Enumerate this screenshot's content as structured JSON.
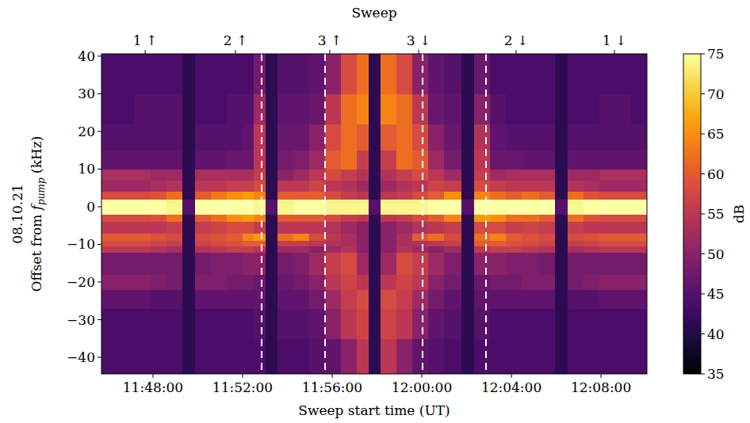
{
  "chart_data": {
    "type": "heatmap",
    "color": "inferno",
    "xlabel": "Sweep start time (UT)",
    "ylabel_date": "08.10.21",
    "ylabel": [
      "Offset from ",
      "f",
      "pump",
      " (kHz)"
    ],
    "top_title": "Sweep",
    "top_ticks": [
      {
        "value": 707.65,
        "label": "1 ↑"
      },
      {
        "value": 711.68,
        "label": "2 ↑"
      },
      {
        "value": 715.89,
        "label": "3 ↑"
      },
      {
        "value": 719.86,
        "label": "3 ↓"
      },
      {
        "value": 724.21,
        "label": "2 ↓"
      },
      {
        "value": 728.6,
        "label": "1 ↓"
      }
    ],
    "xlim": [
      705.7,
      730.05
    ],
    "xticks": [
      {
        "value": 708,
        "label": "11:48:00"
      },
      {
        "value": 712,
        "label": "11:52:00"
      },
      {
        "value": 716,
        "label": "11:56:00"
      },
      {
        "value": 720,
        "label": "12:00:00"
      },
      {
        "value": 724,
        "label": "12:04:00"
      },
      {
        "value": 728,
        "label": "12:08:00"
      }
    ],
    "ylim": [
      -44.4,
      40.6
    ],
    "yticks": [
      {
        "value": -40,
        "label": "−40"
      },
      {
        "value": -30,
        "label": "−30"
      },
      {
        "value": -20,
        "label": "−20"
      },
      {
        "value": -10,
        "label": "−10"
      },
      0,
      10,
      20,
      30,
      40
    ],
    "grid": false,
    "vlines": [
      712.85,
      715.68,
      720.04,
      722.87
    ],
    "line_style": "dashed",
    "x_edges": [
      705.7,
      706.48,
      707.19,
      707.89,
      708.6,
      709.31,
      709.88,
      710.58,
      711.29,
      712.0,
      712.5,
      713.03,
      713.56,
      714.27,
      714.97,
      715.68,
      716.39,
      717.1,
      717.63,
      718.16,
      718.87,
      719.58,
      720.28,
      720.99,
      721.77,
      722.34,
      723.05,
      723.75,
      724.46,
      725.24,
      725.95,
      726.52,
      727.22,
      727.93,
      728.64,
      729.35,
      730.05
    ],
    "y_edges": [
      -44.4,
      -35,
      -27,
      -22,
      -18,
      -12,
      -10.5,
      -9,
      -7,
      -4,
      -2,
      2,
      4,
      7,
      10,
      15,
      22,
      30,
      40.6
    ],
    "cells": [
      [
        44,
        44,
        44,
        44,
        44,
        41,
        44,
        44,
        44,
        44,
        44,
        41,
        44,
        44,
        45,
        46,
        50,
        55,
        41,
        55,
        50,
        46,
        45,
        44,
        41,
        44,
        44,
        44,
        44,
        44,
        41,
        44,
        44,
        44,
        44,
        44
      ],
      [
        44,
        44,
        44,
        44,
        44,
        41,
        44,
        44,
        44,
        44,
        45,
        41,
        45,
        45,
        46,
        50,
        55,
        57,
        41,
        57,
        55,
        50,
        46,
        45,
        41,
        45,
        44,
        44,
        44,
        44,
        41,
        44,
        44,
        44,
        44,
        44
      ],
      [
        46,
        46,
        46,
        45,
        45,
        41,
        46,
        46,
        46,
        46,
        46,
        41,
        46,
        46,
        48,
        52,
        56,
        58,
        41,
        58,
        56,
        52,
        48,
        46,
        41,
        46,
        46,
        46,
        46,
        46,
        41,
        45,
        45,
        46,
        46,
        46
      ],
      [
        50,
        50,
        50,
        49,
        48,
        41,
        49,
        49,
        48,
        48,
        47,
        41,
        47,
        48,
        50,
        55,
        57,
        55,
        41,
        55,
        57,
        55,
        50,
        48,
        41,
        47,
        48,
        48,
        49,
        49,
        41,
        48,
        49,
        50,
        50,
        50
      ],
      [
        48,
        48,
        48,
        48,
        48,
        41,
        48,
        49,
        49,
        50,
        50,
        41,
        48,
        49,
        52,
        56,
        58,
        52,
        41,
        52,
        58,
        56,
        52,
        49,
        41,
        50,
        50,
        49,
        49,
        48,
        41,
        48,
        48,
        48,
        48,
        48
      ],
      [
        55,
        55,
        55,
        54,
        53,
        41,
        54,
        55,
        56,
        56,
        55,
        41,
        52,
        52,
        50,
        52,
        54,
        50,
        41,
        50,
        54,
        52,
        50,
        52,
        41,
        55,
        56,
        56,
        55,
        54,
        41,
        53,
        54,
        55,
        55,
        55
      ],
      [
        58,
        58,
        58,
        57,
        56,
        41,
        57,
        58,
        59,
        60,
        60,
        41,
        56,
        56,
        55,
        54,
        53,
        50,
        41,
        50,
        53,
        54,
        55,
        56,
        41,
        60,
        60,
        59,
        58,
        57,
        41,
        56,
        57,
        58,
        58,
        58
      ],
      [
        60,
        60,
        60,
        59,
        58,
        41,
        58,
        59,
        60,
        64,
        66,
        41,
        62,
        64,
        58,
        55,
        53,
        50,
        41,
        50,
        53,
        60,
        62,
        58,
        41,
        62,
        64,
        60,
        59,
        58,
        41,
        58,
        59,
        60,
        60,
        60
      ],
      [
        55,
        55,
        55,
        55,
        56,
        41,
        56,
        57,
        58,
        58,
        56,
        41,
        55,
        55,
        55,
        54,
        52,
        50,
        41,
        50,
        52,
        54,
        55,
        56,
        41,
        58,
        58,
        56,
        57,
        56,
        41,
        56,
        55,
        55,
        55,
        55
      ],
      [
        58,
        58,
        58,
        59,
        62,
        41,
        60,
        62,
        65,
        66,
        64,
        41,
        60,
        60,
        60,
        58,
        56,
        55,
        41,
        55,
        56,
        58,
        60,
        64,
        41,
        66,
        65,
        62,
        62,
        60,
        41,
        62,
        59,
        58,
        58,
        58
      ],
      [
        75,
        75,
        75,
        75,
        74,
        45,
        75,
        75,
        75,
        75,
        74,
        45,
        74,
        75,
        75,
        74,
        74,
        74,
        45,
        74,
        74,
        74,
        75,
        75,
        45,
        75,
        75,
        75,
        75,
        75,
        45,
        74,
        75,
        75,
        75,
        75
      ],
      [
        58,
        58,
        58,
        59,
        62,
        41,
        60,
        63,
        65,
        66,
        64,
        41,
        60,
        60,
        60,
        58,
        56,
        55,
        41,
        55,
        56,
        58,
        60,
        65,
        41,
        64,
        62,
        60,
        62,
        60,
        41,
        62,
        59,
        58,
        58,
        58
      ],
      [
        52,
        52,
        52,
        53,
        54,
        41,
        55,
        55,
        56,
        56,
        58,
        41,
        55,
        55,
        57,
        55,
        54,
        52,
        41,
        52,
        54,
        55,
        57,
        56,
        41,
        58,
        56,
        55,
        55,
        55,
        41,
        54,
        53,
        52,
        52,
        52
      ],
      [
        53,
        53,
        53,
        52,
        52,
        41,
        53,
        53,
        53,
        53,
        56,
        41,
        50,
        52,
        55,
        58,
        56,
        54,
        41,
        54,
        56,
        58,
        55,
        52,
        41,
        56,
        52,
        53,
        53,
        53,
        41,
        52,
        52,
        53,
        53,
        53
      ],
      [
        46,
        46,
        46,
        46,
        46,
        41,
        46,
        46,
        47,
        47,
        55,
        41,
        48,
        49,
        52,
        60,
        62,
        56,
        41,
        56,
        62,
        60,
        52,
        48,
        41,
        55,
        47,
        47,
        46,
        46,
        41,
        46,
        46,
        46,
        46,
        46
      ],
      [
        45,
        45,
        45,
        45,
        45,
        41,
        45,
        45,
        45,
        46,
        55,
        41,
        47,
        47,
        50,
        58,
        62,
        60,
        41,
        60,
        62,
        58,
        50,
        47,
        41,
        54,
        46,
        45,
        45,
        45,
        41,
        45,
        45,
        45,
        45,
        45
      ],
      [
        44,
        44,
        45,
        45,
        45,
        41,
        44,
        44,
        45,
        45,
        52,
        41,
        46,
        46,
        47,
        55,
        62,
        64,
        41,
        64,
        62,
        55,
        47,
        46,
        41,
        50,
        45,
        44,
        44,
        44,
        41,
        44,
        44,
        45,
        45,
        44
      ],
      [
        44,
        44,
        44,
        44,
        44,
        41,
        44,
        44,
        44,
        44,
        48,
        41,
        45,
        45,
        46,
        50,
        58,
        62,
        41,
        62,
        58,
        50,
        46,
        45,
        41,
        47,
        44,
        44,
        44,
        44,
        41,
        44,
        44,
        44,
        44,
        44
      ]
    ],
    "colorbar": {
      "range": [
        35,
        75
      ],
      "ticks": [
        35,
        40,
        45,
        50,
        55,
        60,
        65,
        70,
        75
      ],
      "label": "dB"
    }
  }
}
